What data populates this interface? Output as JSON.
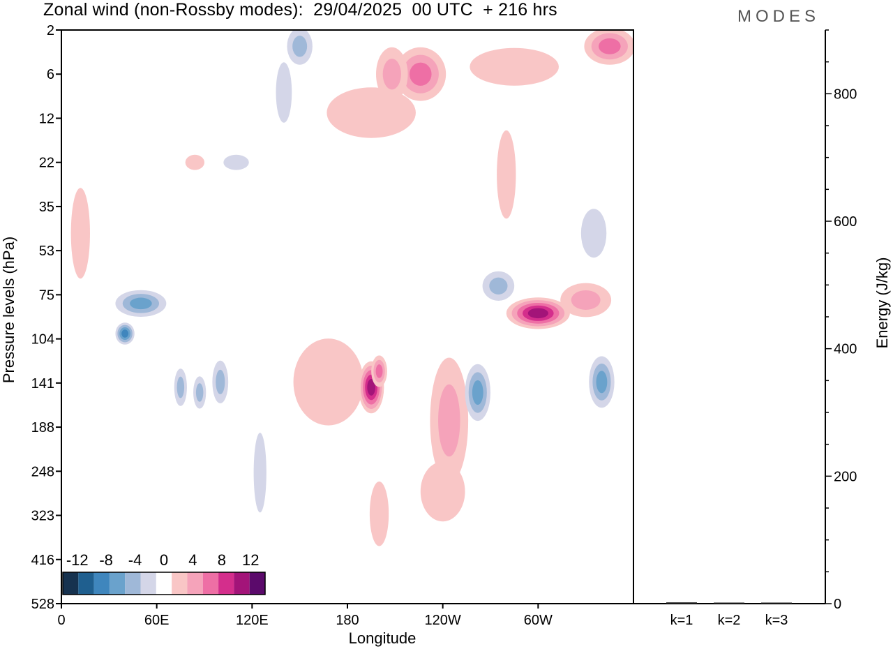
{
  "page": {
    "title": "Zonal wind (non-Rossby modes):  29/04/2025  00 UTC  + 216 hrs",
    "logo": "MODES"
  },
  "chart_data": [
    {
      "type": "heatmap",
      "title": "Zonal wind (non-Rossby modes):  29/04/2025  00 UTC  + 216 hrs",
      "xlabel": "Longitude",
      "ylabel": "Pressure levels (hPa)",
      "x_ticks": [
        "0",
        "60E",
        "120E",
        "180",
        "120W",
        "60W"
      ],
      "x_tick_values": [
        0,
        60,
        120,
        180,
        240,
        300
      ],
      "xlim": [
        0,
        360
      ],
      "y_ticks": [
        "2",
        "6",
        "12",
        "22",
        "35",
        "53",
        "75",
        "104",
        "141",
        "188",
        "248",
        "323",
        "416",
        "528"
      ],
      "colorbar": {
        "labels": [
          "-12",
          "-8",
          "-4",
          "0",
          "4",
          "8",
          "12"
        ],
        "label_values": [
          -12,
          -8,
          -4,
          0,
          4,
          8,
          12
        ],
        "levels": [
          -14,
          -12,
          -10,
          -8,
          -6,
          -4,
          -2,
          2,
          4,
          6,
          8,
          10,
          12,
          14
        ],
        "colors": [
          "#16324f",
          "#1f5f8f",
          "#3f86bd",
          "#6aa2cc",
          "#9fb8d8",
          "#d4d6e8",
          "#ffffff",
          "#f9c6c6",
          "#f5a3ba",
          "#ee6fa5",
          "#d42e8c",
          "#a31479",
          "#5b0a6b"
        ]
      },
      "features": [
        {
          "lon": 84,
          "level": 22,
          "value": 3,
          "lw": 6,
          "lh": 2
        },
        {
          "lon": 110,
          "level": 22,
          "value": -3,
          "lw": 8,
          "lh": 2
        },
        {
          "lon": 140,
          "level": 8,
          "value": -3,
          "lw": 5,
          "lh": 4
        },
        {
          "lon": 150,
          "level": 3,
          "value": -6,
          "lw": 8,
          "lh": 2
        },
        {
          "lon": 195,
          "level": 11,
          "value": 4,
          "lw": 28,
          "lh": 4
        },
        {
          "lon": 226,
          "level": 6,
          "value": 8,
          "lw": 16,
          "lh": 3
        },
        {
          "lon": 208,
          "level": 6,
          "value": 5,
          "lw": 10,
          "lh": 3
        },
        {
          "lon": 285,
          "level": 5,
          "value": 3,
          "lw": 28,
          "lh": 2
        },
        {
          "lon": 345,
          "level": 3,
          "value": 8,
          "lw": 16,
          "lh": 2
        },
        {
          "lon": 280,
          "level": 25,
          "value": 3,
          "lw": 6,
          "lh": 12
        },
        {
          "lon": 12,
          "level": 45,
          "value": 4,
          "lw": 6,
          "lh": 18
        },
        {
          "lon": 50,
          "level": 80,
          "value": -7,
          "lw": 16,
          "lh": 8
        },
        {
          "lon": 40,
          "level": 100,
          "value": -10,
          "lw": 6,
          "lh": 8
        },
        {
          "lon": 75,
          "level": 145,
          "value": -6,
          "lw": 4,
          "lh": 18
        },
        {
          "lon": 87,
          "level": 150,
          "value": -5,
          "lw": 4,
          "lh": 16
        },
        {
          "lon": 100,
          "level": 140,
          "value": -6,
          "lw": 5,
          "lh": 20
        },
        {
          "lon": 125,
          "level": 250,
          "value": -3,
          "lw": 4,
          "lh": 60
        },
        {
          "lon": 168,
          "level": 140,
          "value": 3,
          "lw": 22,
          "lh": 40
        },
        {
          "lon": 195,
          "level": 145,
          "value": 12,
          "lw": 8,
          "lh": 25
        },
        {
          "lon": 200,
          "level": 130,
          "value": 8,
          "lw": 5,
          "lh": 14
        },
        {
          "lon": 200,
          "level": 320,
          "value": 3,
          "lw": 6,
          "lh": 60
        },
        {
          "lon": 244,
          "level": 180,
          "value": 6,
          "lw": 12,
          "lh": 70
        },
        {
          "lon": 240,
          "level": 280,
          "value": 4,
          "lw": 14,
          "lh": 50
        },
        {
          "lon": 262,
          "level": 150,
          "value": -8,
          "lw": 8,
          "lh": 28
        },
        {
          "lon": 300,
          "level": 86,
          "value": 12,
          "lw": 20,
          "lh": 10
        },
        {
          "lon": 330,
          "level": 78,
          "value": 6,
          "lw": 16,
          "lh": 10
        },
        {
          "lon": 275,
          "level": 70,
          "value": -5,
          "lw": 10,
          "lh": 8
        },
        {
          "lon": 340,
          "level": 140,
          "value": -7,
          "lw": 8,
          "lh": 24
        },
        {
          "lon": 335,
          "level": 45,
          "value": -3,
          "lw": 8,
          "lh": 10
        }
      ]
    },
    {
      "type": "bar",
      "ylabel": "Energy (J/kg)",
      "categories": [
        "k=1",
        "k=2",
        "k=3"
      ],
      "values": [
        2,
        1,
        0.5
      ],
      "ylim": [
        0,
        900
      ],
      "y_ticks": [
        "0",
        "200",
        "400",
        "600",
        "800"
      ]
    }
  ]
}
